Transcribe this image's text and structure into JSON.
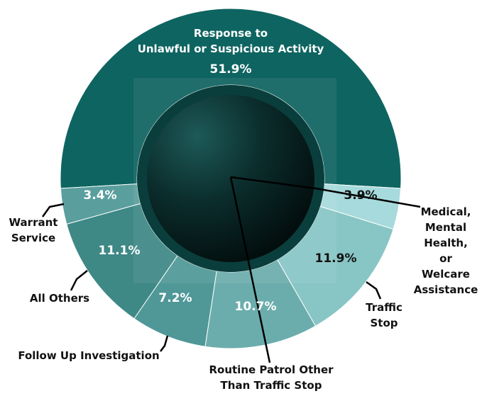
{
  "chart_data": {
    "type": "donut",
    "categories": [
      "Response to\nUnlawful or Suspicious Activity",
      "Medical,\nMental Health,\nor Welcare\nAssistance",
      "Traffic\nStop",
      "Routine Patrol Other\nThan Traffic Stop",
      "Follow Up Investigation",
      "All Others",
      "Warrant\nService"
    ],
    "values": [
      51.9,
      3.9,
      11.9,
      10.7,
      7.2,
      11.1,
      3.4
    ],
    "value_labels": [
      "51.9%",
      "3.9%",
      "11.9%",
      "10.7%",
      "7.2%",
      "11.1%",
      "3.4%"
    ],
    "colors": [
      "#0e6461",
      "#a7dadc",
      "#88c5c5",
      "#6badac",
      "#4f9897",
      "#3e8886",
      "#5a9f9e"
    ]
  }
}
